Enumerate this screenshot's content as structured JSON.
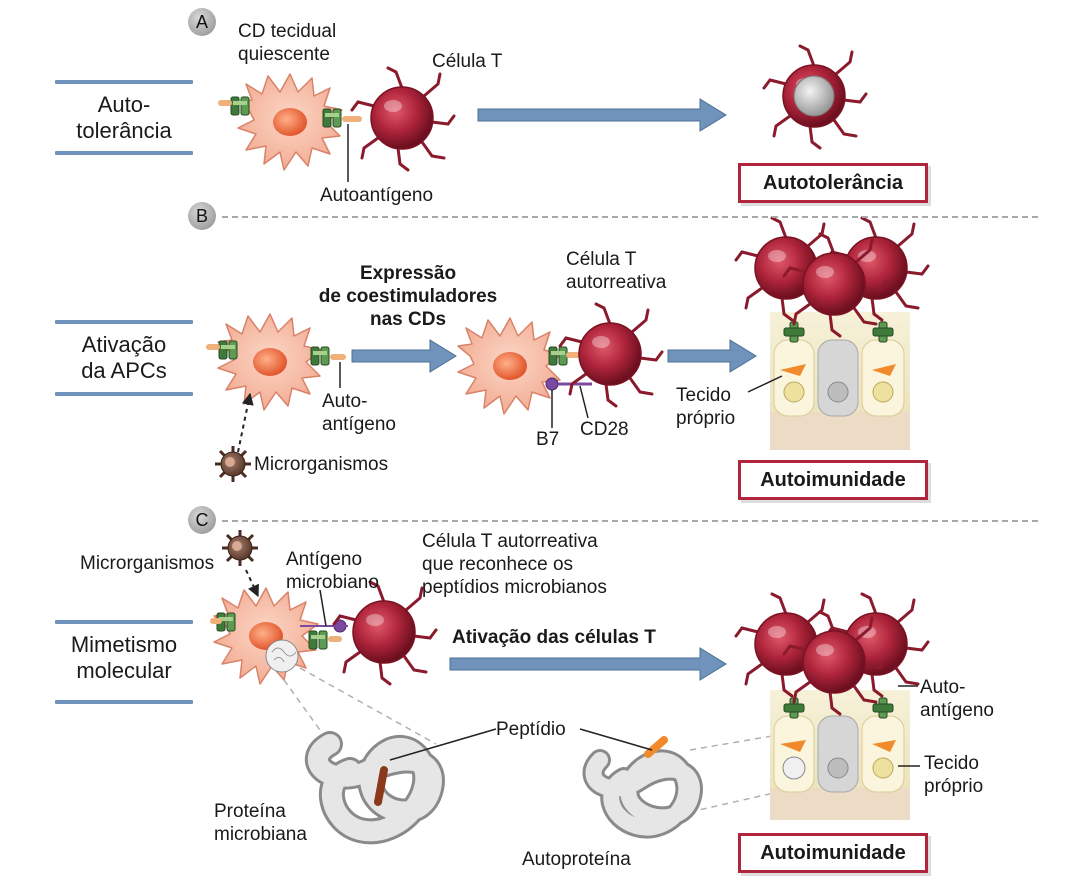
{
  "panels": {
    "a": {
      "badge": "A",
      "row_label": "Auto-\ntolerância",
      "dc_label": "CD tecidual\nquiescente",
      "tcell_label": "Célula T",
      "antigen_label": "Autoantígeno",
      "outcome": "Autotolerância"
    },
    "b": {
      "badge": "B",
      "row_label": "Ativação\nda APCs",
      "antigen_label": "Auto-\nantígeno",
      "microbe_label": "Microrganismos",
      "arrow_label": "Expressão\nde coestimuladores\nnas CDs",
      "tcell_label": "Célula T\nautorreativa",
      "b7_label": "B7",
      "cd28_label": "CD28",
      "tissue_label": "Tecido\npróprio",
      "outcome": "Autoimunidade"
    },
    "c": {
      "badge": "C",
      "row_label": "Mimetismo\nmolecular",
      "microbe_label": "Microrganismos",
      "microbial_antigen_label": "Antígeno\nmicrobiano",
      "tcell_label": "Célula T autorreativa\nque reconhece os\npeptídios microbianos",
      "arrow_label": "Ativação das células T",
      "peptide_label": "Peptídio",
      "microbial_protein_label": "Proteína\nmicrobiana",
      "self_protein_label": "Autoproteína",
      "autoantigen_label": "Auto-\nantígeno",
      "tissue_label": "Tecido\npróprio",
      "outcome": "Autoimunidade"
    }
  },
  "colors": {
    "arrow_blue": "#6f93bb",
    "tcell_red": "#b0253c",
    "dc_orange": "#f2a98f",
    "outcome_border": "#b0253c"
  }
}
